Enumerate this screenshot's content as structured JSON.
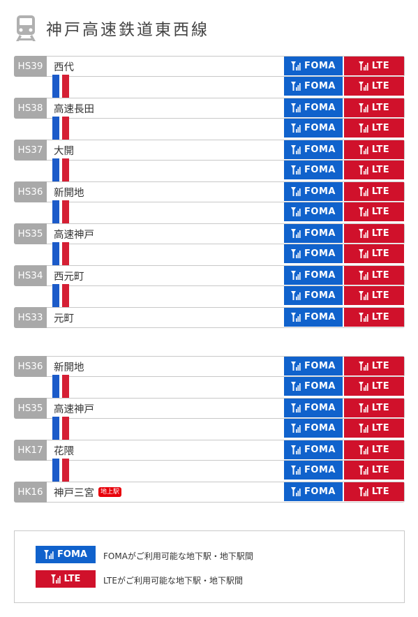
{
  "title": "神戸高速鉄道東西線",
  "icons": {
    "title": "train-icon",
    "signal": "signal-icon"
  },
  "colors": {
    "foma": "#1062cc",
    "lte": "#d0112b",
    "code_bg": "#a9a9a9",
    "line_blue": "#1c5bc9",
    "line_red": "#d51f34",
    "tag": "#e8000b"
  },
  "badges": {
    "foma": "FOMA",
    "lte": "LTE"
  },
  "sections": [
    {
      "rows": [
        {
          "type": "station",
          "code": "HS39",
          "name": "西代"
        },
        {
          "type": "gap"
        },
        {
          "type": "station",
          "code": "HS38",
          "name": "高速長田"
        },
        {
          "type": "gap"
        },
        {
          "type": "station",
          "code": "HS37",
          "name": "大開"
        },
        {
          "type": "gap"
        },
        {
          "type": "station",
          "code": "HS36",
          "name": "新開地"
        },
        {
          "type": "gap"
        },
        {
          "type": "station",
          "code": "HS35",
          "name": "高速神戸"
        },
        {
          "type": "gap"
        },
        {
          "type": "station",
          "code": "HS34",
          "name": "西元町"
        },
        {
          "type": "gap"
        },
        {
          "type": "station",
          "code": "HS33",
          "name": "元町"
        }
      ]
    },
    {
      "rows": [
        {
          "type": "station",
          "code": "HS36",
          "name": "新開地"
        },
        {
          "type": "gap"
        },
        {
          "type": "station",
          "code": "HS35",
          "name": "高速神戸"
        },
        {
          "type": "gap"
        },
        {
          "type": "station",
          "code": "HK17",
          "name": "花隈"
        },
        {
          "type": "gap"
        },
        {
          "type": "station",
          "code": "HK16",
          "name": "神戸三宮",
          "tag": "地上駅"
        }
      ]
    }
  ],
  "legend": {
    "foma_label": "FOMA",
    "foma_text": "FOMAがご利用可能な地下駅・地下駅間",
    "lte_label": "LTE",
    "lte_text": "LTEがご利用可能な地下駅・地下駅間"
  }
}
